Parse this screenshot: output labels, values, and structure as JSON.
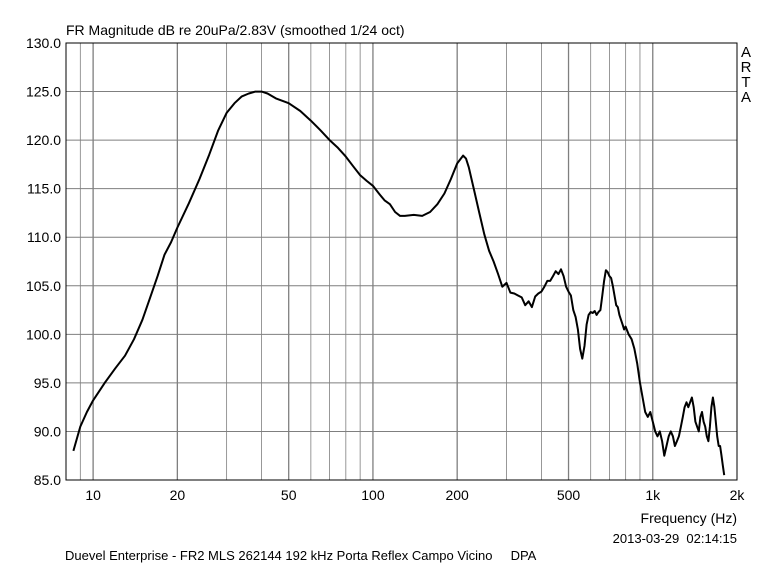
{
  "chart_data": {
    "type": "line",
    "title": "FR Magnitude dB re 20uPa/2.83V (smoothed 1/24 oct)",
    "xlabel": "Frequency (Hz)",
    "ylabel": "",
    "x_scale": "log",
    "xlim": [
      8,
      2000
    ],
    "ylim": [
      85,
      130
    ],
    "grid": true,
    "y_ticks": [
      {
        "value": 85,
        "label": "85.0"
      },
      {
        "value": 90,
        "label": "90.0"
      },
      {
        "value": 95,
        "label": "95.0"
      },
      {
        "value": 100,
        "label": "100.0"
      },
      {
        "value": 105,
        "label": "105.0"
      },
      {
        "value": 110,
        "label": "110.0"
      },
      {
        "value": 115,
        "label": "115.0"
      },
      {
        "value": 120,
        "label": "120.0"
      },
      {
        "value": 125,
        "label": "125.0"
      },
      {
        "value": 130,
        "label": "130.0"
      }
    ],
    "x_ticks": [
      {
        "value": 10,
        "label": "10"
      },
      {
        "value": 20,
        "label": "20"
      },
      {
        "value": 50,
        "label": "50"
      },
      {
        "value": 100,
        "label": "100"
      },
      {
        "value": 200,
        "label": "200"
      },
      {
        "value": 500,
        "label": "500"
      },
      {
        "value": 1000,
        "label": "1k"
      },
      {
        "value": 2000,
        "label": "2k"
      }
    ],
    "series": [
      {
        "x": [
          8.5,
          9,
          9.5,
          10,
          11,
          12,
          13,
          14,
          15,
          16,
          17,
          18,
          19,
          20,
          22,
          24,
          26,
          28,
          30,
          32,
          34,
          36,
          38,
          40,
          42,
          45,
          48,
          50,
          55,
          60,
          65,
          70,
          75,
          80,
          85,
          90,
          95,
          100,
          105,
          110,
          115,
          120,
          125,
          130,
          140,
          150,
          160,
          170,
          180,
          190,
          200,
          210,
          215,
          220,
          225,
          230,
          240,
          250,
          260,
          270,
          280,
          290,
          300,
          310,
          320,
          330,
          340,
          350,
          360,
          370,
          380,
          390,
          400,
          410,
          420,
          430,
          440,
          450,
          460,
          470,
          480,
          490,
          500,
          510,
          520,
          530,
          540,
          550,
          560,
          570,
          580,
          590,
          600,
          610,
          620,
          630,
          640,
          650,
          660,
          670,
          680,
          690,
          700,
          710,
          720,
          730,
          740,
          750,
          760,
          770,
          780,
          790,
          800,
          820,
          840,
          860,
          880,
          900,
          920,
          940,
          960,
          980,
          1000,
          1020,
          1040,
          1060,
          1080,
          1100,
          1120,
          1140,
          1160,
          1180,
          1200,
          1220,
          1240,
          1260,
          1280,
          1300,
          1320,
          1340,
          1360,
          1380,
          1400,
          1420,
          1440,
          1460,
          1480,
          1500,
          1520,
          1540,
          1560,
          1580,
          1600,
          1620,
          1640,
          1660,
          1680,
          1700,
          1720,
          1740,
          1760,
          1780,
          1800
        ],
        "y": [
          88.0,
          90.5,
          92.0,
          93.2,
          95.0,
          96.5,
          97.8,
          99.5,
          101.5,
          103.8,
          106.0,
          108.2,
          109.5,
          111.0,
          113.5,
          116.0,
          118.5,
          121.0,
          122.8,
          123.8,
          124.5,
          124.8,
          125.0,
          125.0,
          124.8,
          124.3,
          124.0,
          123.8,
          123.0,
          122.0,
          121.0,
          120.0,
          119.2,
          118.3,
          117.3,
          116.4,
          115.8,
          115.3,
          114.5,
          113.8,
          113.4,
          112.6,
          112.2,
          112.2,
          112.3,
          112.2,
          112.6,
          113.4,
          114.5,
          116.0,
          117.6,
          118.4,
          118.1,
          117.2,
          116.0,
          114.8,
          112.5,
          110.3,
          108.6,
          107.5,
          106.2,
          104.9,
          105.3,
          104.3,
          104.2,
          104.0,
          103.8,
          103.0,
          103.4,
          102.8,
          103.9,
          104.2,
          104.4,
          104.9,
          105.5,
          105.5,
          106.0,
          106.5,
          106.2,
          106.7,
          106.0,
          104.9,
          104.4,
          104.0,
          102.5,
          101.8,
          100.5,
          98.5,
          97.5,
          98.8,
          101.0,
          102.0,
          102.3,
          102.2,
          102.4,
          102.0,
          102.3,
          102.5,
          104.0,
          105.5,
          106.6,
          106.4,
          106.0,
          105.8,
          105.0,
          104.0,
          103.0,
          102.8,
          102.0,
          101.5,
          101.0,
          100.5,
          100.8,
          100.0,
          99.5,
          98.5,
          97.0,
          95.0,
          93.5,
          92.0,
          91.5,
          92.0,
          91.0,
          90.0,
          89.5,
          90.0,
          89.0,
          87.5,
          88.5,
          89.5,
          90.0,
          89.5,
          88.5,
          89.0,
          89.5,
          90.5,
          91.5,
          92.5,
          93.0,
          92.5,
          93.0,
          93.5,
          92.5,
          91.0,
          90.5,
          90.0,
          91.5,
          92.0,
          91.0,
          90.5,
          89.5,
          89.0,
          90.5,
          92.5,
          93.5,
          92.5,
          91.0,
          89.5,
          88.5,
          88.5,
          87.5,
          86.5,
          85.5
        ]
      }
    ]
  },
  "watermark": {
    "letters": [
      "A",
      "R",
      "T",
      "A"
    ]
  },
  "footer": {
    "timestamp": "2013-03-29  02:14:15",
    "description": "Duevel Enterprise - FR2 MLS 262144 192 kHz Porta Reflex Campo Vicino     DPA"
  }
}
